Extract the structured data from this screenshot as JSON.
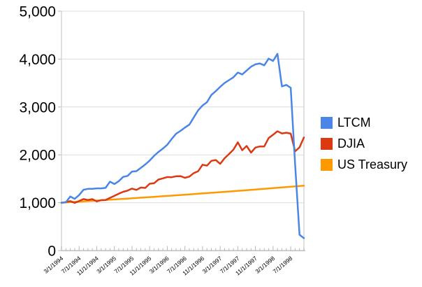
{
  "page": {
    "background": "#ffffff",
    "title": ""
  },
  "chart_data": {
    "type": "line",
    "title": "",
    "xlabel": "",
    "ylabel": "",
    "grid": "horizontal",
    "legend_position": "right",
    "y_axis": {
      "min": 0,
      "max": 5000,
      "step": 1000,
      "tick_labels": [
        "0",
        "1,000",
        "2,000",
        "3,000",
        "4,000",
        "5,000"
      ]
    },
    "x_axis": {
      "tick_labels": [
        "3/1/1994",
        "7/1/1994",
        "11/1/1994",
        "3/1/1995",
        "7/1/1995",
        "11/1/1995",
        "3/1/1996",
        "7/1/1996",
        "11/1/1996",
        "3/1/1997",
        "7/1/1997",
        "11/1/1997",
        "3/1/1998",
        "7/1/1998"
      ],
      "label_every_n_months": 4,
      "dates": [
        "3/1/1994",
        "4/1/1994",
        "5/1/1994",
        "6/1/1994",
        "7/1/1994",
        "8/1/1994",
        "9/1/1994",
        "10/1/1994",
        "11/1/1994",
        "12/1/1994",
        "1/1/1995",
        "2/1/1995",
        "3/1/1995",
        "4/1/1995",
        "5/1/1995",
        "6/1/1995",
        "7/1/1995",
        "8/1/1995",
        "9/1/1995",
        "10/1/1995",
        "11/1/1995",
        "12/1/1995",
        "1/1/1996",
        "2/1/1996",
        "3/1/1996",
        "4/1/1996",
        "5/1/1996",
        "6/1/1996",
        "7/1/1996",
        "8/1/1996",
        "9/1/1996",
        "10/1/1996",
        "11/1/1996",
        "12/1/1996",
        "1/1/1997",
        "2/1/1997",
        "3/1/1997",
        "4/1/1997",
        "5/1/1997",
        "6/1/1997",
        "7/1/1997",
        "8/1/1997",
        "9/1/1997",
        "10/1/1997",
        "11/1/1997",
        "12/1/1997",
        "1/1/1998",
        "2/1/1998",
        "3/1/1998",
        "4/1/1998",
        "5/1/1998",
        "6/1/1998",
        "7/1/1998",
        "8/1/1998",
        "9/1/1998",
        "10/1/1998"
      ]
    },
    "series": [
      {
        "name": "LTCM",
        "color": "#4a86e8",
        "values": [
          1000,
          1010,
          1130,
          1080,
          1160,
          1270,
          1290,
          1290,
          1300,
          1300,
          1310,
          1440,
          1390,
          1450,
          1540,
          1560,
          1650,
          1660,
          1730,
          1800,
          1880,
          1980,
          2060,
          2130,
          2210,
          2330,
          2440,
          2500,
          2570,
          2630,
          2780,
          2930,
          3030,
          3100,
          3250,
          3330,
          3420,
          3500,
          3560,
          3620,
          3720,
          3680,
          3760,
          3840,
          3890,
          3910,
          3870,
          4010,
          3960,
          4110,
          3430,
          3460,
          3400,
          1800,
          330,
          260
        ]
      },
      {
        "name": "DJIA",
        "color": "#dc3912",
        "values": [
          1000,
          1013,
          1034,
          997,
          1035,
          1076,
          1057,
          1075,
          1028,
          1054,
          1057,
          1103,
          1143,
          1188,
          1228,
          1253,
          1295,
          1268,
          1317,
          1308,
          1396,
          1407,
          1484,
          1509,
          1537,
          1532,
          1552,
          1555,
          1521,
          1545,
          1618,
          1658,
          1794,
          1773,
          1874,
          1892,
          1811,
          1928,
          2016,
          2110,
          2262,
          2096,
          2185,
          2047,
          2152,
          2175,
          2175,
          2350,
          2420,
          2493,
          2448,
          2462,
          2443,
          2073,
          2157,
          2363
        ]
      },
      {
        "name": "US Treasury",
        "color": "#ff9900",
        "values": [
          1000,
          1006,
          1011,
          1017,
          1022,
          1028,
          1034,
          1039,
          1045,
          1051,
          1057,
          1063,
          1068,
          1074,
          1080,
          1086,
          1092,
          1098,
          1105,
          1111,
          1117,
          1123,
          1129,
          1136,
          1142,
          1148,
          1155,
          1161,
          1168,
          1174,
          1181,
          1187,
          1194,
          1200,
          1207,
          1214,
          1221,
          1227,
          1234,
          1241,
          1248,
          1255,
          1262,
          1269,
          1276,
          1283,
          1290,
          1297,
          1304,
          1311,
          1319,
          1326,
          1333,
          1341,
          1348,
          1355
        ]
      }
    ],
    "style": {
      "grid_color": "#dcdcdc",
      "frame_color": "#d5d5d5",
      "axis_color": "#9e9e9e",
      "tick_color": "#b7b7b7",
      "label_color": "#000000",
      "background": "#ffffff"
    }
  }
}
